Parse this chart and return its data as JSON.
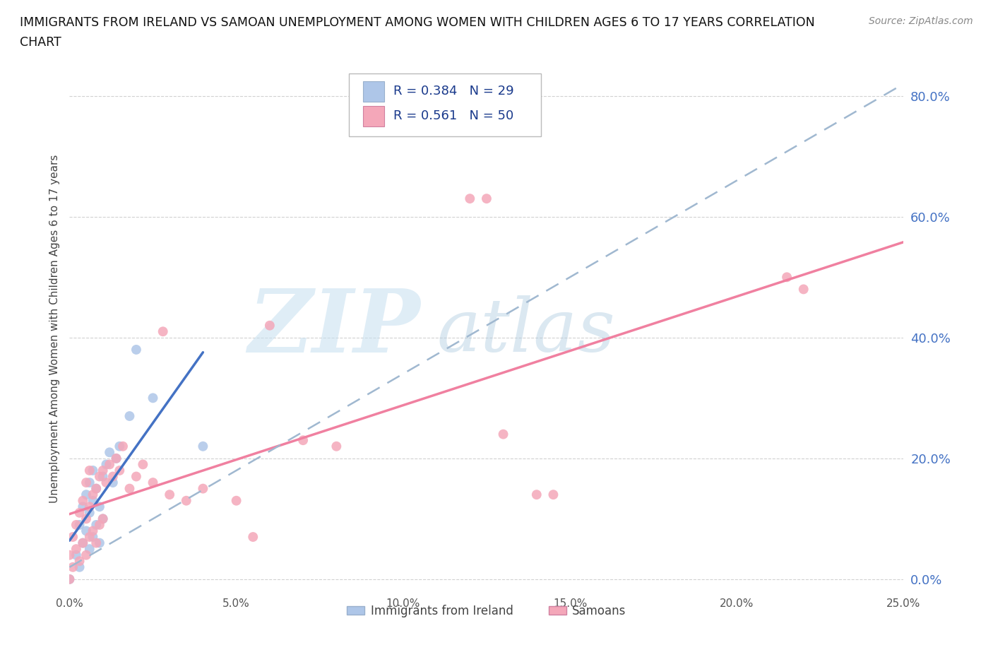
{
  "title_line1": "IMMIGRANTS FROM IRELAND VS SAMOAN UNEMPLOYMENT AMONG WOMEN WITH CHILDREN AGES 6 TO 17 YEARS CORRELATION",
  "title_line2": "CHART",
  "source": "Source: ZipAtlas.com",
  "ylabel": "Unemployment Among Women with Children Ages 6 to 17 years",
  "xlim": [
    0.0,
    0.25
  ],
  "ylim": [
    -0.02,
    0.85
  ],
  "yticks": [
    0.0,
    0.2,
    0.4,
    0.6,
    0.8
  ],
  "ytick_labels": [
    "0.0%",
    "20.0%",
    "40.0%",
    "60.0%",
    "80.0%"
  ],
  "xticks": [
    0.0,
    0.05,
    0.1,
    0.15,
    0.2,
    0.25
  ],
  "xtick_labels": [
    "0.0%",
    "5.0%",
    "10.0%",
    "15.0%",
    "20.0%",
    "25.0%"
  ],
  "ireland_color": "#aec6e8",
  "samoan_color": "#f4a7b9",
  "ireland_line_color": "#4472c4",
  "samoan_solid_line_color": "#f080a0",
  "samoan_dash_line_color": "#a0b8d0",
  "ireland_R": 0.384,
  "ireland_N": 29,
  "samoan_R": 0.561,
  "samoan_N": 50,
  "grid_color": "#cccccc",
  "bg_color": "#ffffff",
  "legend_text_color": "#1a3a8c",
  "ytick_color": "#4472c4",
  "xtick_color": "#555555",
  "ireland_x": [
    0.0,
    0.002,
    0.003,
    0.003,
    0.004,
    0.004,
    0.005,
    0.005,
    0.006,
    0.006,
    0.006,
    0.007,
    0.007,
    0.007,
    0.008,
    0.008,
    0.009,
    0.009,
    0.01,
    0.01,
    0.011,
    0.012,
    0.013,
    0.014,
    0.015,
    0.018,
    0.02,
    0.025,
    0.04
  ],
  "ireland_y": [
    0.0,
    0.04,
    0.02,
    0.09,
    0.06,
    0.12,
    0.08,
    0.14,
    0.05,
    0.11,
    0.16,
    0.07,
    0.13,
    0.18,
    0.09,
    0.15,
    0.06,
    0.12,
    0.1,
    0.17,
    0.19,
    0.21,
    0.16,
    0.2,
    0.22,
    0.27,
    0.38,
    0.3,
    0.22
  ],
  "samoan_x": [
    0.0,
    0.0,
    0.001,
    0.001,
    0.002,
    0.002,
    0.003,
    0.003,
    0.004,
    0.004,
    0.005,
    0.005,
    0.005,
    0.006,
    0.006,
    0.006,
    0.007,
    0.007,
    0.008,
    0.008,
    0.009,
    0.009,
    0.01,
    0.01,
    0.011,
    0.012,
    0.013,
    0.014,
    0.015,
    0.016,
    0.018,
    0.02,
    0.022,
    0.025,
    0.028,
    0.03,
    0.035,
    0.04,
    0.05,
    0.055,
    0.06,
    0.07,
    0.08,
    0.12,
    0.125,
    0.13,
    0.14,
    0.145,
    0.215,
    0.22
  ],
  "samoan_y": [
    0.0,
    0.04,
    0.02,
    0.07,
    0.05,
    0.09,
    0.03,
    0.11,
    0.06,
    0.13,
    0.04,
    0.1,
    0.16,
    0.07,
    0.12,
    0.18,
    0.08,
    0.14,
    0.06,
    0.15,
    0.09,
    0.17,
    0.1,
    0.18,
    0.16,
    0.19,
    0.17,
    0.2,
    0.18,
    0.22,
    0.15,
    0.17,
    0.19,
    0.16,
    0.41,
    0.14,
    0.13,
    0.15,
    0.13,
    0.07,
    0.42,
    0.23,
    0.22,
    0.63,
    0.63,
    0.24,
    0.14,
    0.14,
    0.5,
    0.48
  ]
}
